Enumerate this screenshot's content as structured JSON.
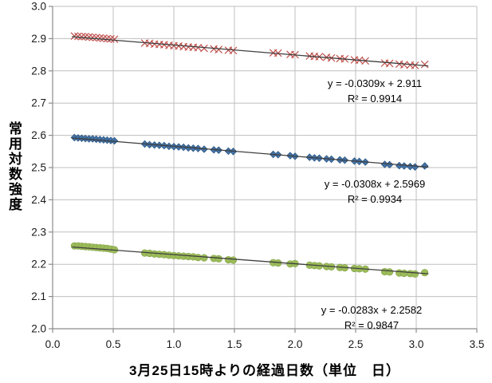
{
  "chart_data": {
    "type": "scatter",
    "x_label": "3月25日15時よりの経過日数（単位　日）",
    "y_label": "常用対数強度",
    "xlim": [
      0.0,
      3.5
    ],
    "ylim": [
      2.0,
      3.0
    ],
    "grid": true,
    "x_ticks": [
      0.0,
      0.5,
      1.0,
      1.5,
      2.0,
      2.5,
      3.0,
      3.5
    ],
    "x_tick_labels": [
      "0.0",
      "0.5",
      "1.0",
      "1.5",
      "2.0",
      "2.5",
      "3.0",
      "3.5"
    ],
    "y_ticks": [
      2.0,
      2.1,
      2.2,
      2.3,
      2.4,
      2.5,
      2.6,
      2.7,
      2.8,
      2.9,
      3.0
    ],
    "y_tick_labels": [
      "2.0",
      "2.1",
      "2.2",
      "2.3",
      "2.4",
      "2.5",
      "2.6",
      "2.7",
      "2.8",
      "2.9",
      "3.0"
    ],
    "colors": {
      "grid": "#BFBFBF",
      "axis": "#8C8C8C",
      "trendline": "#3F3F3F",
      "upper_series": "#C0504D",
      "middle_series": "#4573A7",
      "middle_series_edge": "#2E5984",
      "lower_series": "#9BBB59",
      "lower_series_edge": "#85A348"
    },
    "x": [
      0.18,
      0.21,
      0.24,
      0.27,
      0.3,
      0.33,
      0.36,
      0.39,
      0.42,
      0.45,
      0.48,
      0.51,
      0.76,
      0.8,
      0.84,
      0.88,
      0.92,
      0.96,
      1.0,
      1.04,
      1.08,
      1.12,
      1.16,
      1.2,
      1.25,
      1.33,
      1.37,
      1.45,
      1.49,
      1.82,
      1.86,
      1.96,
      2.0,
      2.12,
      2.16,
      2.2,
      2.26,
      2.3,
      2.37,
      2.41,
      2.49,
      2.53,
      2.58,
      2.74,
      2.78,
      2.86,
      2.9,
      2.95,
      2.99,
      3.07
    ],
    "trendline_x_range": [
      0.16,
      3.1
    ],
    "series": [
      {
        "name": "upper",
        "marker": "x-cross",
        "color": "#C0504D",
        "equation": "y = -0.0309x + 2.911",
        "r2": "R² = 0.9914",
        "trend": {
          "slope": -0.0309,
          "intercept": 2.911
        },
        "y": [
          2.908,
          2.907,
          2.906,
          2.906,
          2.905,
          2.904,
          2.903,
          2.902,
          2.901,
          2.9,
          2.899,
          2.898,
          2.886,
          2.885,
          2.883,
          2.882,
          2.881,
          2.879,
          2.878,
          2.877,
          2.875,
          2.874,
          2.873,
          2.872,
          2.87,
          2.868,
          2.866,
          2.864,
          2.863,
          2.856,
          2.855,
          2.851,
          2.85,
          2.846,
          2.845,
          2.844,
          2.842,
          2.84,
          2.838,
          2.837,
          2.834,
          2.833,
          2.831,
          2.824,
          2.823,
          2.821,
          2.819,
          2.818,
          2.817,
          2.82
        ]
      },
      {
        "name": "middle",
        "marker": "diamond",
        "color": "#4573A7",
        "equation": "y = -0.0308x + 2.5969",
        "r2": "R² = 0.9934",
        "trend": {
          "slope": -0.0308,
          "intercept": 2.5969
        },
        "y": [
          2.593,
          2.592,
          2.591,
          2.59,
          2.589,
          2.589,
          2.588,
          2.587,
          2.586,
          2.585,
          2.584,
          2.583,
          2.573,
          2.571,
          2.57,
          2.569,
          2.568,
          2.566,
          2.565,
          2.564,
          2.563,
          2.561,
          2.56,
          2.559,
          2.557,
          2.555,
          2.554,
          2.551,
          2.55,
          2.541,
          2.54,
          2.537,
          2.535,
          2.532,
          2.53,
          2.529,
          2.527,
          2.526,
          2.524,
          2.523,
          2.52,
          2.519,
          2.517,
          2.51,
          2.509,
          2.506,
          2.505,
          2.503,
          2.502,
          2.505
        ]
      },
      {
        "name": "lower",
        "marker": "circle",
        "color": "#9BBB59",
        "equation": "y = -0.0283x + 2.2582",
        "r2": "R² = 0.9847",
        "trend": {
          "slope": -0.0283,
          "intercept": 2.2582
        },
        "y": [
          2.257,
          2.257,
          2.256,
          2.255,
          2.254,
          2.253,
          2.252,
          2.251,
          2.25,
          2.249,
          2.247,
          2.245,
          2.235,
          2.234,
          2.232,
          2.231,
          2.23,
          2.228,
          2.227,
          2.226,
          2.225,
          2.224,
          2.223,
          2.221,
          2.22,
          2.218,
          2.217,
          2.214,
          2.213,
          2.205,
          2.204,
          2.201,
          2.202,
          2.197,
          2.196,
          2.195,
          2.193,
          2.192,
          2.19,
          2.189,
          2.187,
          2.186,
          2.185,
          2.177,
          2.176,
          2.173,
          2.172,
          2.171,
          2.17,
          2.174
        ]
      }
    ]
  }
}
